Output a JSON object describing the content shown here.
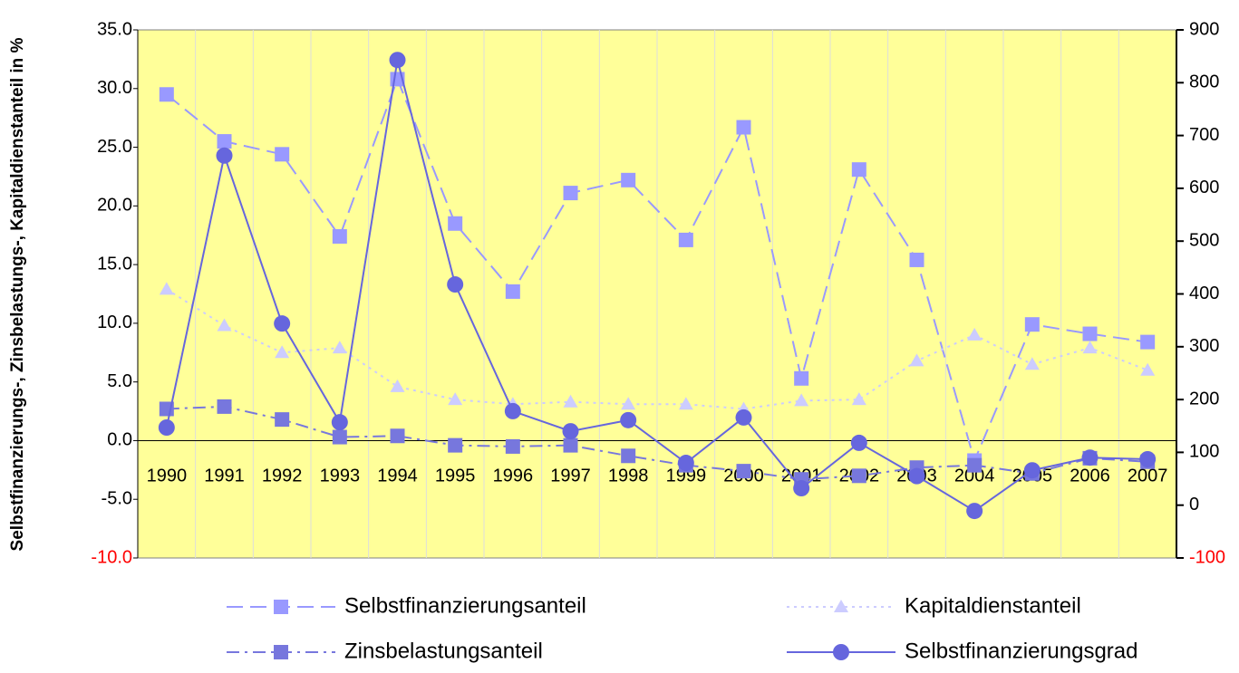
{
  "chart_data": {
    "type": "line",
    "ylabel": "Selbstfinanzierungs-, Zinsbelastungs-, Kapitaldienstanteil in %",
    "categories": [
      "1990",
      "1991",
      "1992",
      "1993",
      "1994",
      "1995",
      "1996",
      "1997",
      "1998",
      "1999",
      "2000",
      "2001",
      "2002",
      "2003",
      "2004",
      "2005",
      "2006",
      "2007"
    ],
    "ylim": [
      -10,
      35
    ],
    "yticks": [
      {
        "value": -10,
        "label": "-10.0"
      },
      {
        "value": -5,
        "label": "-5.0"
      },
      {
        "value": 0,
        "label": "0.0"
      },
      {
        "value": 5,
        "label": "5.0"
      },
      {
        "value": 10,
        "label": "10.0"
      },
      {
        "value": 15,
        "label": "15.0"
      },
      {
        "value": 20,
        "label": "20.0"
      },
      {
        "value": 25,
        "label": "25.0"
      },
      {
        "value": 30,
        "label": "30.0"
      },
      {
        "value": 35,
        "label": "35.0"
      }
    ],
    "y2lim": [
      -100,
      900
    ],
    "y2ticks": [
      -100,
      0,
      100,
      200,
      300,
      400,
      500,
      600,
      700,
      800,
      900
    ],
    "background": "#ffff99",
    "series": [
      {
        "name": "Selbstfinanzierungsanteil",
        "color": "#9999ff",
        "marker": "square",
        "dash": "dashed",
        "values": [
          29.5,
          25.5,
          24.4,
          17.4,
          30.8,
          18.5,
          12.7,
          21.1,
          22.2,
          17.1,
          26.7,
          5.3,
          23.1,
          15.4,
          -1.7,
          9.9,
          9.1,
          8.4
        ]
      },
      {
        "name": "Kapitaldienstanteil",
        "color": "#ccccff",
        "marker": "triangle",
        "dash": "dotted",
        "values": [
          12.9,
          9.8,
          7.5,
          7.9,
          4.6,
          3.5,
          3.1,
          3.3,
          3.1,
          3.1,
          2.7,
          3.4,
          3.5,
          6.8,
          9.0,
          6.5,
          7.9,
          6.0
        ]
      },
      {
        "name": "Zinsbelastungsanteil",
        "color": "#7777dd",
        "marker": "square",
        "dash": "dashdot",
        "values": [
          2.7,
          2.9,
          1.8,
          0.3,
          0.4,
          -0.4,
          -0.5,
          -0.4,
          -1.3,
          -2.1,
          -2.6,
          -3.3,
          -3.0,
          -2.3,
          -2.1,
          -2.8,
          -1.5,
          -1.8
        ]
      },
      {
        "name": "Selbstfinanzierungsgrad",
        "color": "#6666dd",
        "marker": "circle",
        "dash": "solid",
        "axis": "y2",
        "values": [
          147,
          662,
          344,
          157,
          843,
          418,
          178,
          140,
          161,
          80,
          166,
          32,
          118,
          55,
          -11,
          66,
          90,
          87
        ]
      }
    ]
  }
}
